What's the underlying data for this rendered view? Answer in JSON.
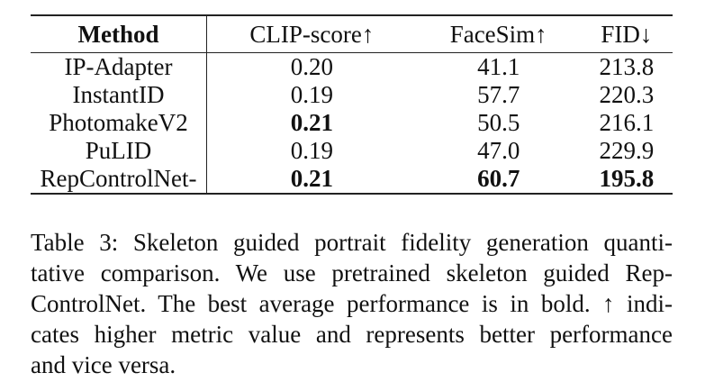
{
  "table": {
    "headers": [
      "Method",
      "CLIP-score↑",
      "FaceSim↑",
      "FID↓"
    ],
    "rows": [
      {
        "method": "IP-Adapter",
        "clip": "0.20",
        "facesim": "41.1",
        "fid": "213.8",
        "bold": []
      },
      {
        "method": "InstantID",
        "clip": "0.19",
        "facesim": "57.7",
        "fid": "220.3",
        "bold": []
      },
      {
        "method": "PhotomakeV2",
        "clip": "0.21",
        "facesim": "50.5",
        "fid": "216.1",
        "bold": [
          "clip"
        ]
      },
      {
        "method": "PuLID",
        "clip": "0.19",
        "facesim": "47.0",
        "fid": "229.9",
        "bold": []
      },
      {
        "method": "RepControlNet-",
        "clip": "0.21",
        "facesim": "60.7",
        "fid": "195.8",
        "bold": [
          "clip",
          "facesim",
          "fid"
        ]
      }
    ]
  },
  "caption": {
    "lines": [
      "Table 3: Skeleton guided portrait fidelity generation quanti-",
      "tative comparison. We use pretrained skeleton guided Rep-",
      "ControlNet. The best average performance is in bold. ↑ indi-",
      "cates higher metric value and represents better performance",
      "and vice versa."
    ]
  }
}
